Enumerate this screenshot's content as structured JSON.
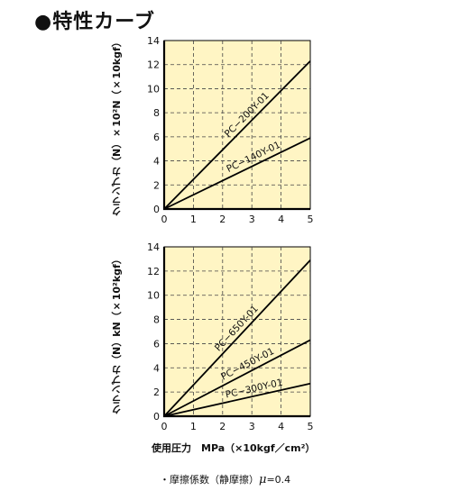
{
  "header": {
    "title": "●特性カーブ"
  },
  "chart_data": [
    {
      "type": "line",
      "ylabel": "クランプカ（N）×10²N（×10kgf）",
      "xlim": [
        0,
        5
      ],
      "ylim": [
        0,
        14
      ],
      "xticks": [
        "0",
        "1",
        "2",
        "3",
        "4",
        "5"
      ],
      "yticks": [
        "0",
        "2",
        "4",
        "6",
        "8",
        "10",
        "12",
        "14"
      ],
      "grid": true,
      "series": [
        {
          "name": "PC−200Y-01",
          "x": [
            0,
            5
          ],
          "y": [
            0,
            12.3
          ]
        },
        {
          "name": "PC−140Y-01",
          "x": [
            0,
            5
          ],
          "y": [
            0,
            5.9
          ]
        }
      ]
    },
    {
      "type": "line",
      "ylabel": "クランプカ（N）kN（×10²kgf）",
      "xlabel": "使用圧力　MPa（×10kgf／cm²）",
      "xlim": [
        0,
        5
      ],
      "ylim": [
        0,
        14
      ],
      "xticks": [
        "0",
        "1",
        "2",
        "3",
        "4",
        "5"
      ],
      "yticks": [
        "0",
        "2",
        "4",
        "6",
        "8",
        "10",
        "12",
        "14"
      ],
      "grid": true,
      "series": [
        {
          "name": "PC−650Y-01",
          "x": [
            0,
            5
          ],
          "y": [
            0,
            12.9
          ]
        },
        {
          "name": "PC−450Y-01",
          "x": [
            0,
            5
          ],
          "y": [
            0,
            6.3
          ]
        },
        {
          "name": "PC−300Y-01",
          "x": [
            0,
            5
          ],
          "y": [
            0,
            2.7
          ]
        }
      ]
    }
  ],
  "footnote": {
    "prefix": "・摩擦係数（静摩擦）",
    "mu": "μ",
    "value": "=0.4"
  },
  "colors": {
    "plot_bg": "#fff5c4",
    "grid": "#444444",
    "line": "#000000"
  }
}
